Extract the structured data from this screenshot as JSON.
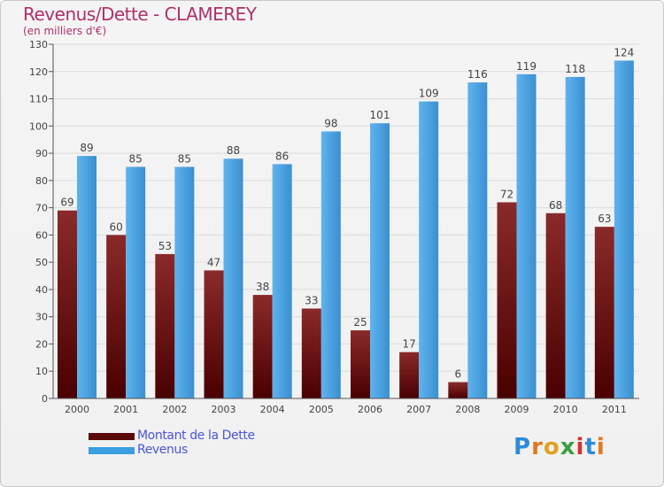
{
  "title": "Revenus/Dette - CLAMEREY",
  "subtitle": "(en milliers d'€)",
  "logo_letters": [
    "P",
    "r",
    "o",
    "x",
    "i",
    "t",
    "i"
  ],
  "logo_colors": [
    "#2e8bd8",
    "#e07820",
    "#e0a020",
    "#3aa040",
    "#d83030",
    "#2e8bd8",
    "#e07820"
  ],
  "legend": [
    {
      "label": "Montant de la Dette",
      "color": "#6b0a0a"
    },
    {
      "label": "Revenus",
      "color": "#3a9ee0"
    }
  ],
  "chart_data": {
    "type": "bar",
    "categories": [
      "2000",
      "2001",
      "2002",
      "2003",
      "2004",
      "2005",
      "2006",
      "2007",
      "2008",
      "2009",
      "2010",
      "2011"
    ],
    "series": [
      {
        "name": "Montant de la Dette",
        "color": "#7a1515",
        "values": [
          69,
          60,
          53,
          47,
          38,
          33,
          25,
          17,
          6,
          72,
          68,
          63
        ]
      },
      {
        "name": "Revenus",
        "color": "#4aa3e8",
        "values": [
          89,
          85,
          85,
          88,
          86,
          98,
          101,
          109,
          116,
          119,
          118,
          124
        ]
      }
    ],
    "ylim": [
      0,
      130
    ],
    "yticks": [
      0,
      10,
      20,
      30,
      40,
      50,
      60,
      70,
      80,
      90,
      100,
      110,
      120,
      130
    ],
    "grid": true
  }
}
